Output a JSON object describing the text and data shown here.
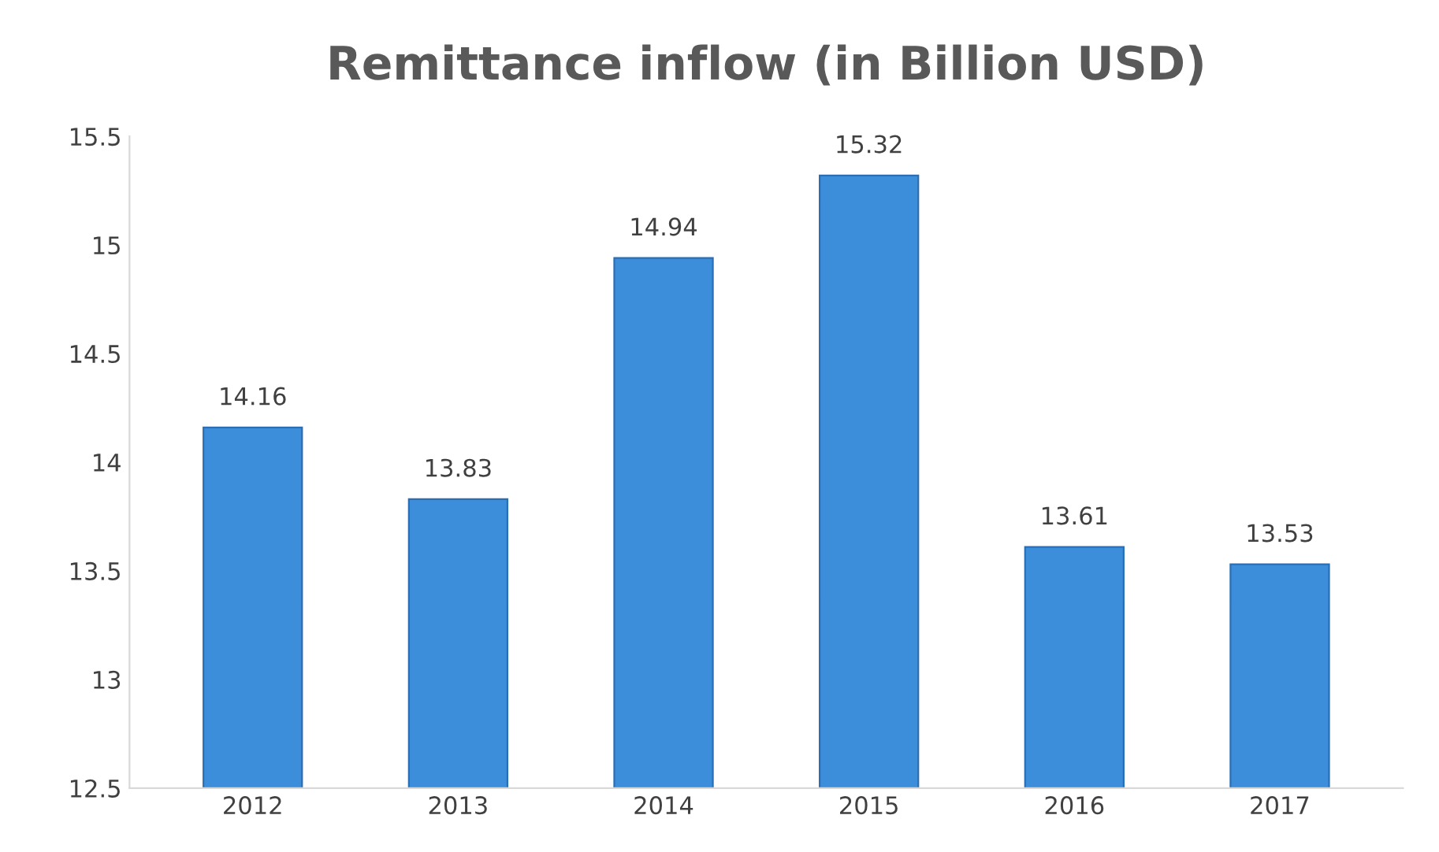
{
  "chart_data": {
    "type": "bar",
    "title": "Remittance inflow (in Billion USD)",
    "categories": [
      "2012",
      "2013",
      "2014",
      "2015",
      "2016",
      "2017"
    ],
    "values": [
      14.16,
      13.83,
      14.94,
      15.32,
      13.61,
      13.53
    ],
    "color": "#3c8edb",
    "ylim": [
      12.5,
      15.5
    ],
    "yticks": [
      12.5,
      13,
      13.5,
      14,
      14.5,
      15,
      15.5
    ],
    "data_labels": true,
    "grid": false,
    "legend": false
  }
}
